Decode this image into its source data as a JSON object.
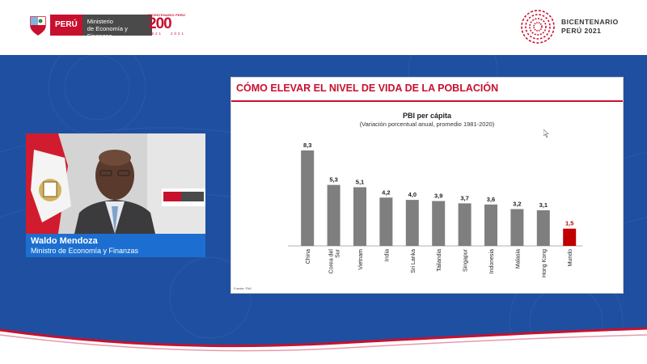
{
  "header": {
    "peru_label": "PERÚ",
    "ministry_label_1": "Ministerio",
    "ministry_label_2": "de Economía y Finanzas",
    "bicentenario_small": "BICENTENARIO PERÚ",
    "bicentenario_number": "200",
    "bicentenario_years": "1821 · 2021",
    "bicentenario_right_1": "BICENTENARIO",
    "bicentenario_right_2": "PERÚ 2021"
  },
  "speaker": {
    "name": "Waldo Mendoza",
    "role": "Ministro de Economía y Finanzas"
  },
  "slide": {
    "title": "CÓMO ELEVAR EL NIVEL DE VIDA DE LA POBLACIÓN",
    "source": "Fuente: FMI"
  },
  "colors": {
    "brand_red": "#c8102e",
    "band_blue": "#1f4fa0",
    "bar_gray": "#7f7f7f",
    "bar_highlight": "#c00000"
  },
  "chart_data": {
    "type": "bar",
    "title": "PBI per cápita",
    "subtitle": "(Variación porcentual anual, promedio 1981-2020)",
    "categories": [
      "China",
      "Corea del Sur",
      "Vietnam",
      "India",
      "Sri Lanka",
      "Tailandia",
      "Singapur",
      "Indonesia",
      "Malasia",
      "Hong Kong",
      "Mundo"
    ],
    "values": [
      8.3,
      5.3,
      5.1,
      4.2,
      4.0,
      3.9,
      3.7,
      3.6,
      3.2,
      3.1,
      1.5
    ],
    "value_labels": [
      "8,3",
      "5,3",
      "5,1",
      "4,2",
      "4,0",
      "3,9",
      "3,7",
      "3,6",
      "3,2",
      "3,1",
      "1,5"
    ],
    "highlight": [
      "Mundo"
    ],
    "ylim": [
      0,
      9
    ],
    "grid": false,
    "legend": "none"
  }
}
